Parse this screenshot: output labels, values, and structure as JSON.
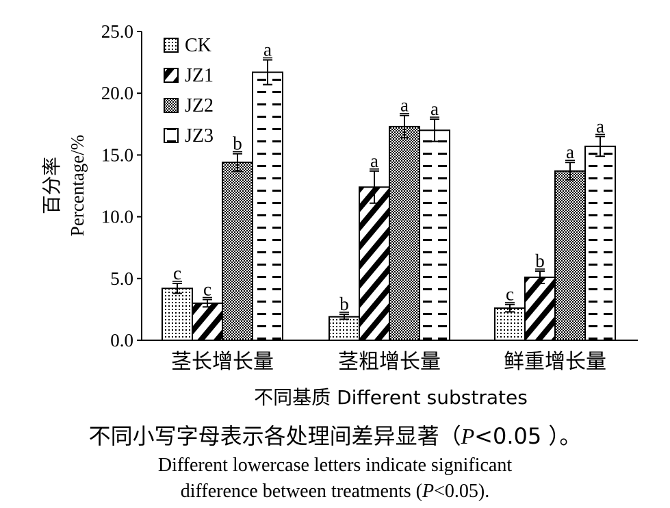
{
  "chart_data": {
    "type": "bar",
    "categories": [
      "茎长增长量",
      "茎粗增长量",
      "鲜重增长量"
    ],
    "series": [
      {
        "name": "CK",
        "pattern": "dots",
        "values": [
          4.2,
          1.9,
          2.6
        ],
        "errors": [
          0.4,
          0.2,
          0.3
        ],
        "letters": [
          "c",
          "b",
          "c"
        ]
      },
      {
        "name": "JZ1",
        "pattern": "diagonal",
        "values": [
          3.0,
          12.4,
          5.1
        ],
        "errors": [
          0.3,
          1.3,
          0.5
        ],
        "letters": [
          "c",
          "a",
          "b"
        ]
      },
      {
        "name": "JZ2",
        "pattern": "crosshatch",
        "values": [
          14.4,
          17.3,
          13.7
        ],
        "errors": [
          0.7,
          0.9,
          0.7
        ],
        "letters": [
          "b",
          "a",
          "a"
        ]
      },
      {
        "name": "JZ3",
        "pattern": "dashes",
        "values": [
          21.7,
          17.0,
          15.7
        ],
        "errors": [
          1.0,
          0.9,
          0.8
        ],
        "letters": [
          "a",
          "a",
          "a"
        ]
      }
    ],
    "ylim": [
      0,
      25
    ],
    "yticks": [
      "0.0",
      "5.0",
      "10.0",
      "15.0",
      "20.0",
      "25.0"
    ],
    "ylabel_cn": "百分率",
    "ylabel_en": "Percentage/%",
    "xlabel": "不同基质 Different substrates",
    "legend_position": "top-left",
    "grid": false
  },
  "caption": {
    "cn_before": "不同小写字母表示各处理间差异显著（",
    "cn_p": "P",
    "cn_after": "<0.05 ）。",
    "en_line1": "Different lowercase letters indicate significant",
    "en_line2_before": "difference between treatments (",
    "en_p": "P",
    "en_line2_after": "<0.05)."
  },
  "colors": {
    "ink": "#000000",
    "background": "#ffffff"
  }
}
